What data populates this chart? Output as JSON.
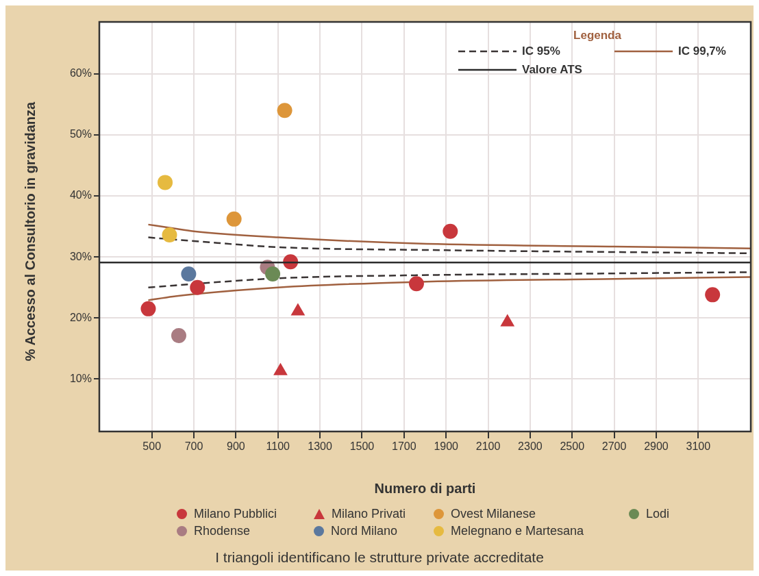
{
  "chart_data": {
    "type": "scatter",
    "xlabel": "Numero di parti",
    "ylabel": "% Accesso al Consultorio in gravidanza",
    "legend_title": "Legenda",
    "legend": "bottom",
    "grid": true,
    "xlim": [
      250,
      3350
    ],
    "xticks": [
      500,
      700,
      900,
      1100,
      1300,
      1500,
      1700,
      1900,
      2100,
      2300,
      2500,
      2700,
      2900,
      3100
    ],
    "ylim": [
      1.4,
      68.5
    ],
    "yticks": [
      {
        "value": 10,
        "label": "10%"
      },
      {
        "value": 20,
        "label": "20%"
      },
      {
        "value": 30,
        "label": "30%"
      },
      {
        "value": 40,
        "label": "40%"
      },
      {
        "value": 50,
        "label": "50%"
      },
      {
        "value": 60,
        "label": "60%"
      }
    ],
    "series": [
      {
        "name": "Milano Pubblici",
        "type": "scatter",
        "marker": "circle",
        "color": "#c8373c",
        "x": [
          483,
          717,
          1160,
          1759,
          1920,
          3168
        ],
        "values": [
          21.5,
          25.0,
          29.2,
          25.6,
          34.2,
          23.8
        ]
      },
      {
        "name": "Milano Privati",
        "type": "scatter",
        "marker": "triangle",
        "color": "#c8373c",
        "x": [
          1195,
          1112,
          2192
        ],
        "values": [
          21.1,
          11.3,
          19.3
        ]
      },
      {
        "name": "Ovest Milanese",
        "type": "scatter",
        "marker": "circle",
        "color": "#dd963a",
        "x": [
          1132,
          891
        ],
        "values": [
          54.0,
          36.2
        ]
      },
      {
        "name": "Lodi",
        "type": "scatter",
        "marker": "circle",
        "color": "#6b8a55",
        "x": [
          1075
        ],
        "values": [
          27.2
        ]
      },
      {
        "name": "Rhodense",
        "type": "scatter",
        "marker": "circle",
        "color": "#a97c82",
        "x": [
          1050,
          628
        ],
        "values": [
          28.3,
          17.1
        ]
      },
      {
        "name": "Nord Milano",
        "type": "scatter",
        "marker": "circle",
        "color": "#5b789e",
        "x": [
          675
        ],
        "values": [
          27.2
        ]
      },
      {
        "name": "Melegnano e Martesana",
        "type": "scatter",
        "marker": "circle",
        "color": "#e6ba40",
        "x": [
          563,
          584
        ],
        "values": [
          42.2,
          33.6
        ]
      },
      {
        "name": "IC 95%",
        "type": "line",
        "line_style": "dashed",
        "marker": "none",
        "color": "#3a3434",
        "x": [
          483,
          700,
          1100,
          1900,
          2700,
          3349
        ],
        "values": [
          33.2,
          32.6,
          31.6,
          31.1,
          30.8,
          30.6
        ]
      },
      {
        "type": "line",
        "line_style": "dashed",
        "marker": "none",
        "color": "#3a3434",
        "x": [
          483,
          1100,
          1760,
          2700,
          3349
        ],
        "values": [
          25.0,
          26.5,
          27.0,
          27.3,
          27.5
        ]
      },
      {
        "name": "IC 99,7%",
        "type": "line",
        "line_style": "solid",
        "marker": "none",
        "color": "#a0603f",
        "x": [
          483,
          600,
          700,
          1100,
          1760,
          2700,
          3349
        ],
        "values": [
          35.3,
          34.7,
          34.2,
          33.2,
          32.2,
          31.7,
          31.4
        ]
      },
      {
        "type": "line",
        "line_style": "solid",
        "marker": "none",
        "color": "#a0603f",
        "x": [
          483,
          600,
          700,
          1100,
          1760,
          2700,
          3349
        ],
        "values": [
          22.9,
          23.5,
          23.9,
          25.0,
          25.9,
          26.4,
          26.7
        ]
      }
    ],
    "ref_lines": [
      {
        "axis": "y",
        "value": 29.1,
        "label": "Valore ATS",
        "color": "#2b2b2b",
        "line_style": "solid"
      }
    ],
    "annotations": [
      "I triangoli identificano le strutture private accreditate"
    ]
  }
}
